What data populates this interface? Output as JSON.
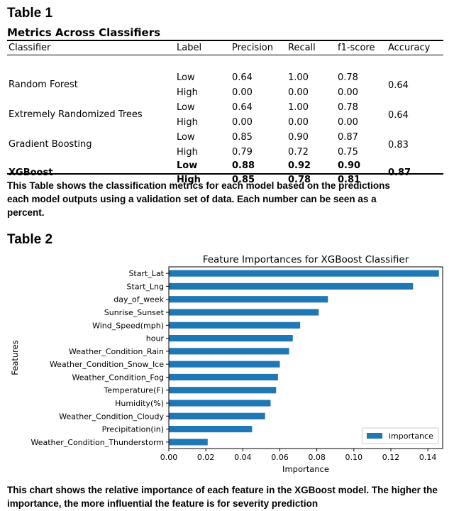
{
  "table1": {
    "heading": "Table 1",
    "title": "Metrics Across Classifiers",
    "columns": [
      "Classifier",
      "Label",
      "Precision",
      "Recall",
      "f1-score",
      "Accuracy"
    ],
    "rows": [
      {
        "classifier": "Random Forest",
        "accuracy": "0.64",
        "bold": false,
        "low": {
          "label": "Low",
          "precision": "0.64",
          "recall": "1.00",
          "f1": "0.78"
        },
        "high": {
          "label": "High",
          "precision": "0.00",
          "recall": "0.00",
          "f1": "0.00"
        }
      },
      {
        "classifier": "Extremely Randomized Trees",
        "accuracy": "0.64",
        "bold": false,
        "low": {
          "label": "Low",
          "precision": "0.64",
          "recall": "1.00",
          "f1": "0.78"
        },
        "high": {
          "label": "High",
          "precision": "0.00",
          "recall": "0.00",
          "f1": "0.00"
        }
      },
      {
        "classifier": "Gradient Boosting",
        "accuracy": "0.83",
        "bold": false,
        "low": {
          "label": "Low",
          "precision": "0.85",
          "recall": "0.90",
          "f1": "0.87"
        },
        "high": {
          "label": "High",
          "precision": "0.79",
          "recall": "0.72",
          "f1": "0.75"
        }
      },
      {
        "classifier": "XGBoost",
        "accuracy": "0.87",
        "bold": true,
        "low": {
          "label": "Low",
          "precision": "0.88",
          "recall": "0.92",
          "f1": "0.90"
        },
        "high": {
          "label": "High",
          "precision": "0.85",
          "recall": "0.78",
          "f1": "0.81"
        }
      }
    ],
    "caption": "This Table shows the classification metrics for each model based on the predictions each model outputs using a validation set of data. Each number can be seen as a percent."
  },
  "table2": {
    "heading": "Table 2",
    "caption": "This chart shows the relative importance of each feature in the XGBoost model. The higher the importance, the more influential the feature is for severity prediction"
  },
  "chart_data": {
    "type": "bar",
    "orientation": "horizontal",
    "title": "Feature Importances for XGBoost Classifier",
    "xlabel": "Importance",
    "ylabel": "Features",
    "xlim": [
      0.0,
      0.148
    ],
    "xticks": [
      "0.00",
      "0.02",
      "0.04",
      "0.06",
      "0.08",
      "0.10",
      "0.12",
      "0.14"
    ],
    "grid": false,
    "legend_position": "lower-right",
    "bar_color": "#1f77b4",
    "categories": [
      "Start_Lat",
      "Start_Lng",
      "day_of_week",
      "Sunrise_Sunset",
      "Wind_Speed(mph)",
      "hour",
      "Weather_Condition_Rain",
      "Weather_Condition_Snow_Ice",
      "Weather_Condition_Fog",
      "Temperature(F)",
      "Humidity(%)",
      "Weather_Condition_Cloudy",
      "Precipitation(in)",
      "Weather_Condition_Thunderstorm"
    ],
    "series": [
      {
        "name": "importance",
        "values": [
          0.146,
          0.132,
          0.086,
          0.081,
          0.071,
          0.067,
          0.065,
          0.06,
          0.059,
          0.058,
          0.055,
          0.052,
          0.045,
          0.021
        ]
      }
    ]
  }
}
